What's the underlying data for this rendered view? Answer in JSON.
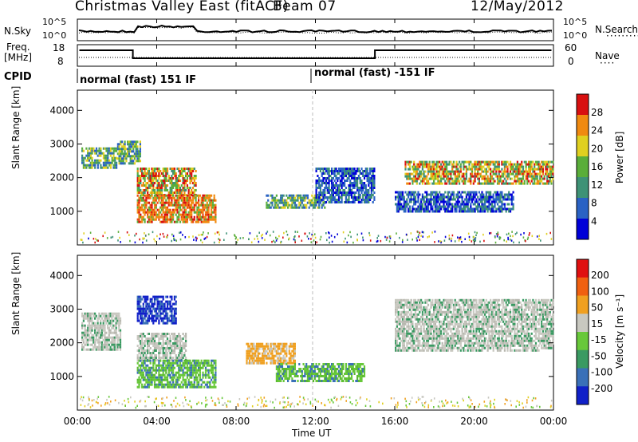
{
  "header": {
    "title": "Christmas Valley East (fitACF)",
    "beam": "Beam 07",
    "date": "12/May/2012"
  },
  "strip_noise": {
    "left_label": "N.Sky",
    "right_label": "N.Search",
    "left_ticks": [
      "10^5",
      "10^0"
    ],
    "right_ticks": [
      "10^5",
      "10^0"
    ]
  },
  "strip_freq": {
    "left_label_top": "Freq.",
    "left_label_bottom": "[MHz]",
    "right_label": "Nave",
    "left_ticks": [
      "18",
      "8"
    ],
    "right_ticks": [
      "60",
      "0"
    ]
  },
  "cpid": {
    "label": "CPID",
    "segments": [
      {
        "start_hour": 0,
        "text": "normal (fast) 151 IF"
      },
      {
        "start_hour": 12,
        "text": "normal (fast) -151 IF"
      }
    ]
  },
  "x_axis": {
    "label": "Time UT",
    "ticks": [
      "00:00",
      "04:00",
      "08:00",
      "12:00",
      "16:00",
      "20:00",
      "00:00"
    ]
  },
  "chart_data": [
    {
      "type": "heatmap",
      "title": "",
      "ylabel": "Slant Range [km]",
      "xlabel": "Time UT",
      "xlim": [
        0,
        24
      ],
      "ylim": [
        0,
        4600
      ],
      "y_ticks": [
        "1000",
        "2000",
        "3000",
        "4000"
      ],
      "colorbar": {
        "label": "Power [dB]",
        "ticks": [
          "4",
          "8",
          "12",
          "16",
          "20",
          "24",
          "28"
        ],
        "colors": [
          "#0000d8",
          "#2a62c4",
          "#3e9276",
          "#5aae3a",
          "#e0d020",
          "#f08a10",
          "#d81010"
        ]
      },
      "regions": [
        {
          "t0": 0.2,
          "t1": 2.0,
          "r0": 2300,
          "r1": 2900,
          "level": "mid"
        },
        {
          "t0": 2.0,
          "t1": 3.2,
          "r0": 2400,
          "r1": 3100,
          "level": "mid"
        },
        {
          "t0": 3.0,
          "t1": 6.0,
          "r0": 1500,
          "r1": 2300,
          "level": "high"
        },
        {
          "t0": 3.0,
          "t1": 7.0,
          "r0": 650,
          "r1": 1500,
          "level": "veryhigh"
        },
        {
          "t0": 9.5,
          "t1": 12.5,
          "r0": 1100,
          "r1": 1500,
          "level": "mid"
        },
        {
          "t0": 12.0,
          "t1": 15.0,
          "r0": 1300,
          "r1": 2300,
          "level": "low"
        },
        {
          "t0": 16.5,
          "t1": 24.0,
          "r0": 1800,
          "r1": 2500,
          "level": "high"
        },
        {
          "t0": 16.0,
          "t1": 22.0,
          "r0": 1000,
          "r1": 1600,
          "level": "low"
        }
      ]
    },
    {
      "type": "heatmap",
      "title": "",
      "ylabel": "Slant Range [km]",
      "xlabel": "Time UT",
      "xlim": [
        0,
        24
      ],
      "ylim": [
        0,
        4600
      ],
      "y_ticks": [
        "1000",
        "2000",
        "3000",
        "4000"
      ],
      "colorbar": {
        "label": "Velocity [m s⁻¹]",
        "ticks": [
          "200",
          "100",
          "50",
          "15",
          "-15",
          "-50",
          "-100",
          "-200"
        ],
        "colors": [
          "#1020c8",
          "#3a70b8",
          "#3a9a62",
          "#68c83a",
          "#c8c8c0",
          "#f0a020",
          "#f06010",
          "#e01010"
        ]
      },
      "regions": [
        {
          "t0": 0.2,
          "t1": 2.2,
          "r0": 1800,
          "r1": 2900,
          "level": "neutral"
        },
        {
          "t0": 3.0,
          "t1": 5.0,
          "r0": 2600,
          "r1": 3400,
          "level": "blue"
        },
        {
          "t0": 3.0,
          "t1": 5.5,
          "r0": 1500,
          "r1": 2300,
          "level": "neutral"
        },
        {
          "t0": 3.0,
          "t1": 7.0,
          "r0": 650,
          "r1": 1500,
          "level": "green"
        },
        {
          "t0": 8.5,
          "t1": 11.0,
          "r0": 1400,
          "r1": 2000,
          "level": "orange"
        },
        {
          "t0": 10.0,
          "t1": 14.5,
          "r0": 900,
          "r1": 1400,
          "level": "green"
        },
        {
          "t0": 16.0,
          "t1": 24.0,
          "r0": 1800,
          "r1": 3300,
          "level": "neutral"
        }
      ]
    }
  ]
}
